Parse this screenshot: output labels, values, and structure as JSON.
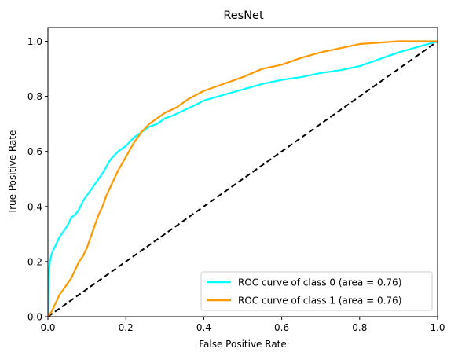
{
  "chart_data": {
    "type": "line",
    "title": "ResNet",
    "xlabel": "False Positive Rate",
    "ylabel": "True Positive Rate",
    "xlim": [
      0.0,
      1.0
    ],
    "ylim": [
      0.0,
      1.05
    ],
    "x_ticks": [
      "0.0",
      "0.2",
      "0.4",
      "0.6",
      "0.8",
      "1.0"
    ],
    "y_ticks": [
      "0.0",
      "0.2",
      "0.4",
      "0.6",
      "0.8",
      "1.0"
    ],
    "grid": false,
    "legend_position": "bottom-right",
    "series": [
      {
        "name": "ROC curve of class 0 (area = 0.76)",
        "color": "#00ffff",
        "points": [
          [
            0.0,
            0.0
          ],
          [
            0.002,
            0.15
          ],
          [
            0.005,
            0.2
          ],
          [
            0.01,
            0.23
          ],
          [
            0.02,
            0.26
          ],
          [
            0.03,
            0.29
          ],
          [
            0.04,
            0.31
          ],
          [
            0.05,
            0.33
          ],
          [
            0.06,
            0.36
          ],
          [
            0.07,
            0.37
          ],
          [
            0.08,
            0.39
          ],
          [
            0.09,
            0.42
          ],
          [
            0.1,
            0.44
          ],
          [
            0.12,
            0.48
          ],
          [
            0.14,
            0.52
          ],
          [
            0.16,
            0.57
          ],
          [
            0.18,
            0.6
          ],
          [
            0.2,
            0.62
          ],
          [
            0.22,
            0.65
          ],
          [
            0.24,
            0.67
          ],
          [
            0.26,
            0.69
          ],
          [
            0.28,
            0.7
          ],
          [
            0.3,
            0.72
          ],
          [
            0.32,
            0.73
          ],
          [
            0.35,
            0.75
          ],
          [
            0.38,
            0.77
          ],
          [
            0.4,
            0.785
          ],
          [
            0.45,
            0.805
          ],
          [
            0.5,
            0.825
          ],
          [
            0.55,
            0.845
          ],
          [
            0.6,
            0.86
          ],
          [
            0.65,
            0.87
          ],
          [
            0.7,
            0.885
          ],
          [
            0.75,
            0.895
          ],
          [
            0.8,
            0.91
          ],
          [
            0.85,
            0.935
          ],
          [
            0.9,
            0.96
          ],
          [
            0.95,
            0.98
          ],
          [
            1.0,
            1.0
          ]
        ]
      },
      {
        "name": "ROC curve of class 1 (area = 0.76)",
        "color": "#ff9900",
        "points": [
          [
            0.0,
            0.0
          ],
          [
            0.01,
            0.02
          ],
          [
            0.02,
            0.05
          ],
          [
            0.03,
            0.08
          ],
          [
            0.04,
            0.1
          ],
          [
            0.05,
            0.12
          ],
          [
            0.06,
            0.14
          ],
          [
            0.07,
            0.17
          ],
          [
            0.08,
            0.2
          ],
          [
            0.09,
            0.22
          ],
          [
            0.1,
            0.25
          ],
          [
            0.11,
            0.29
          ],
          [
            0.12,
            0.33
          ],
          [
            0.13,
            0.37
          ],
          [
            0.14,
            0.4
          ],
          [
            0.15,
            0.44
          ],
          [
            0.16,
            0.47
          ],
          [
            0.18,
            0.53
          ],
          [
            0.2,
            0.58
          ],
          [
            0.22,
            0.63
          ],
          [
            0.24,
            0.67
          ],
          [
            0.26,
            0.7
          ],
          [
            0.28,
            0.72
          ],
          [
            0.3,
            0.74
          ],
          [
            0.33,
            0.76
          ],
          [
            0.36,
            0.79
          ],
          [
            0.4,
            0.82
          ],
          [
            0.45,
            0.845
          ],
          [
            0.5,
            0.87
          ],
          [
            0.55,
            0.9
          ],
          [
            0.6,
            0.915
          ],
          [
            0.65,
            0.94
          ],
          [
            0.7,
            0.96
          ],
          [
            0.75,
            0.975
          ],
          [
            0.8,
            0.99
          ],
          [
            0.85,
            0.995
          ],
          [
            0.9,
            1.0
          ],
          [
            1.0,
            1.0
          ]
        ]
      }
    ],
    "reference_line": {
      "color": "#000000",
      "dashed": true,
      "points": [
        [
          0.0,
          0.0
        ],
        [
          1.0,
          1.0
        ]
      ]
    }
  }
}
